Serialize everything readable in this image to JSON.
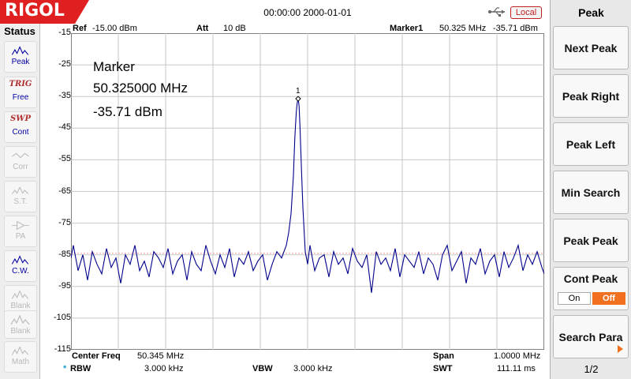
{
  "header": {
    "logo": "RIGOL",
    "datetime": "00:00:00 2000-01-01",
    "usb_icon": "usb-icon",
    "remote_badge": "Local",
    "colors": {
      "logo_red": "#e02020",
      "accent_orange": "#f07020",
      "trace_blue": "#00008b"
    }
  },
  "status": {
    "title": "Status",
    "items": [
      {
        "icon": "peak-icon",
        "top": "",
        "label": "Peak",
        "active": true
      },
      {
        "icon": "trig-icon",
        "top": "TRIG",
        "label": "Free",
        "active": true
      },
      {
        "icon": "swp-icon",
        "top": "SWP",
        "label": "Cont",
        "active": true
      },
      {
        "icon": "corr-icon",
        "top": "",
        "label": "Corr",
        "active": false
      },
      {
        "icon": "st-icon",
        "top": "",
        "label": "S.T.",
        "active": false
      },
      {
        "icon": "pa-icon",
        "top": "",
        "label": "PA",
        "active": false
      },
      {
        "icon": "cw-icon",
        "top": "",
        "label": "C.W.",
        "active": true
      },
      {
        "icon": "blank-icon",
        "top": "",
        "label": "Blank",
        "active": false
      },
      {
        "icon": "blank-icon",
        "top": "",
        "label": "Blank",
        "active": false
      },
      {
        "icon": "math-icon",
        "top": "",
        "label": "Math",
        "active": false
      }
    ]
  },
  "display": {
    "ref_label": "Ref",
    "ref_value": "-15.00 dBm",
    "att_label": "Att",
    "att_value": "10 dB",
    "marker_label": "Marker1",
    "marker_freq": "50.325 MHz",
    "marker_amp": "-35.71 dBm",
    "y_ticks": [
      "-15",
      "-25",
      "-35",
      "-45",
      "-55",
      "-65",
      "-75",
      "-85",
      "-95",
      "-105",
      "-115"
    ],
    "marker_box": {
      "title": "Marker",
      "freq": "50.325000 MHz",
      "amp": "-35.71 dBm",
      "marker_num": "1"
    },
    "center_freq_label": "Center Freq",
    "center_freq_value": "50.345 MHz",
    "span_label": "Span",
    "span_value": "1.0000 MHz",
    "rbw_star": "*",
    "rbw_label": "RBW",
    "rbw_value": "3.000 kHz",
    "vbw_label": "VBW",
    "vbw_value": "3.000 kHz",
    "swt_label": "SWT",
    "swt_value": "111.11 ms"
  },
  "chart_data": {
    "type": "line",
    "title": "",
    "xlabel": "",
    "ylabel": "",
    "xlim": [
      49.845,
      50.845
    ],
    "ylim": [
      -115,
      -15
    ],
    "grid": true,
    "noise_floor": -88,
    "peak": {
      "x": 50.325,
      "y": -35.71
    },
    "series": [
      {
        "x": [
          49.845,
          49.85,
          49.86,
          49.87,
          49.88,
          49.89,
          49.9,
          49.91,
          49.92,
          49.93,
          49.94,
          49.95,
          49.96,
          49.97,
          49.98,
          49.99,
          50.0,
          50.01,
          50.02,
          50.03,
          50.04,
          50.05,
          50.06,
          50.07,
          50.08,
          50.09,
          50.1,
          50.11,
          50.12,
          50.13,
          50.14,
          50.15,
          50.16,
          50.17,
          50.18,
          50.19,
          50.2,
          50.21,
          50.22,
          50.23,
          50.24,
          50.25,
          50.26,
          50.27,
          50.28,
          50.29,
          50.3,
          50.305,
          50.31,
          50.315,
          50.318,
          50.321,
          50.323,
          50.325,
          50.327,
          50.329,
          50.332,
          50.335,
          50.34,
          50.345,
          50.35,
          50.36,
          50.37,
          50.38,
          50.39,
          50.4,
          50.41,
          50.42,
          50.43,
          50.44,
          50.45,
          50.46,
          50.47,
          50.48,
          50.49,
          50.5,
          50.51,
          50.52,
          50.53,
          50.54,
          50.55,
          50.56,
          50.57,
          50.58,
          50.59,
          50.6,
          50.61,
          50.62,
          50.63,
          50.64,
          50.65,
          50.66,
          50.67,
          50.68,
          50.69,
          50.7,
          50.71,
          50.72,
          50.73,
          50.74,
          50.75,
          50.76,
          50.77,
          50.78,
          50.79,
          50.8,
          50.81,
          50.82,
          50.83,
          50.84,
          50.845
        ],
        "y": [
          -86,
          -82,
          -90,
          -85,
          -93,
          -84,
          -88,
          -91,
          -83,
          -89,
          -86,
          -94,
          -85,
          -88,
          -82,
          -90,
          -87,
          -92,
          -84,
          -86,
          -89,
          -83,
          -91,
          -87,
          -85,
          -93,
          -84,
          -88,
          -90,
          -82,
          -87,
          -91,
          -85,
          -89,
          -83,
          -92,
          -86,
          -88,
          -84,
          -90,
          -87,
          -85,
          -93,
          -88,
          -84,
          -86,
          -82,
          -78,
          -72,
          -60,
          -48,
          -40,
          -37,
          -35.71,
          -38,
          -45,
          -58,
          -70,
          -84,
          -88,
          -82,
          -90,
          -86,
          -85,
          -92,
          -84,
          -88,
          -86,
          -91,
          -83,
          -87,
          -89,
          -85,
          -97,
          -84,
          -88,
          -86,
          -90,
          -83,
          -92,
          -85,
          -87,
          -89,
          -84,
          -91,
          -86,
          -88,
          -93,
          -85,
          -82,
          -90,
          -87,
          -84,
          -94,
          -86,
          -88,
          -83,
          -91,
          -87,
          -85,
          -92,
          -84,
          -89,
          -86,
          -82,
          -90,
          -85,
          -88,
          -84,
          -89,
          -91
        ]
      }
    ]
  },
  "menu": {
    "title": "Peak",
    "buttons": [
      "Next Peak",
      "Peak Right",
      "Peak Left",
      "Min Search",
      "Peak Peak",
      "Cont Peak",
      "Search Para"
    ],
    "cont_peak_on": "On",
    "cont_peak_off": "Off",
    "page": "1/2"
  }
}
